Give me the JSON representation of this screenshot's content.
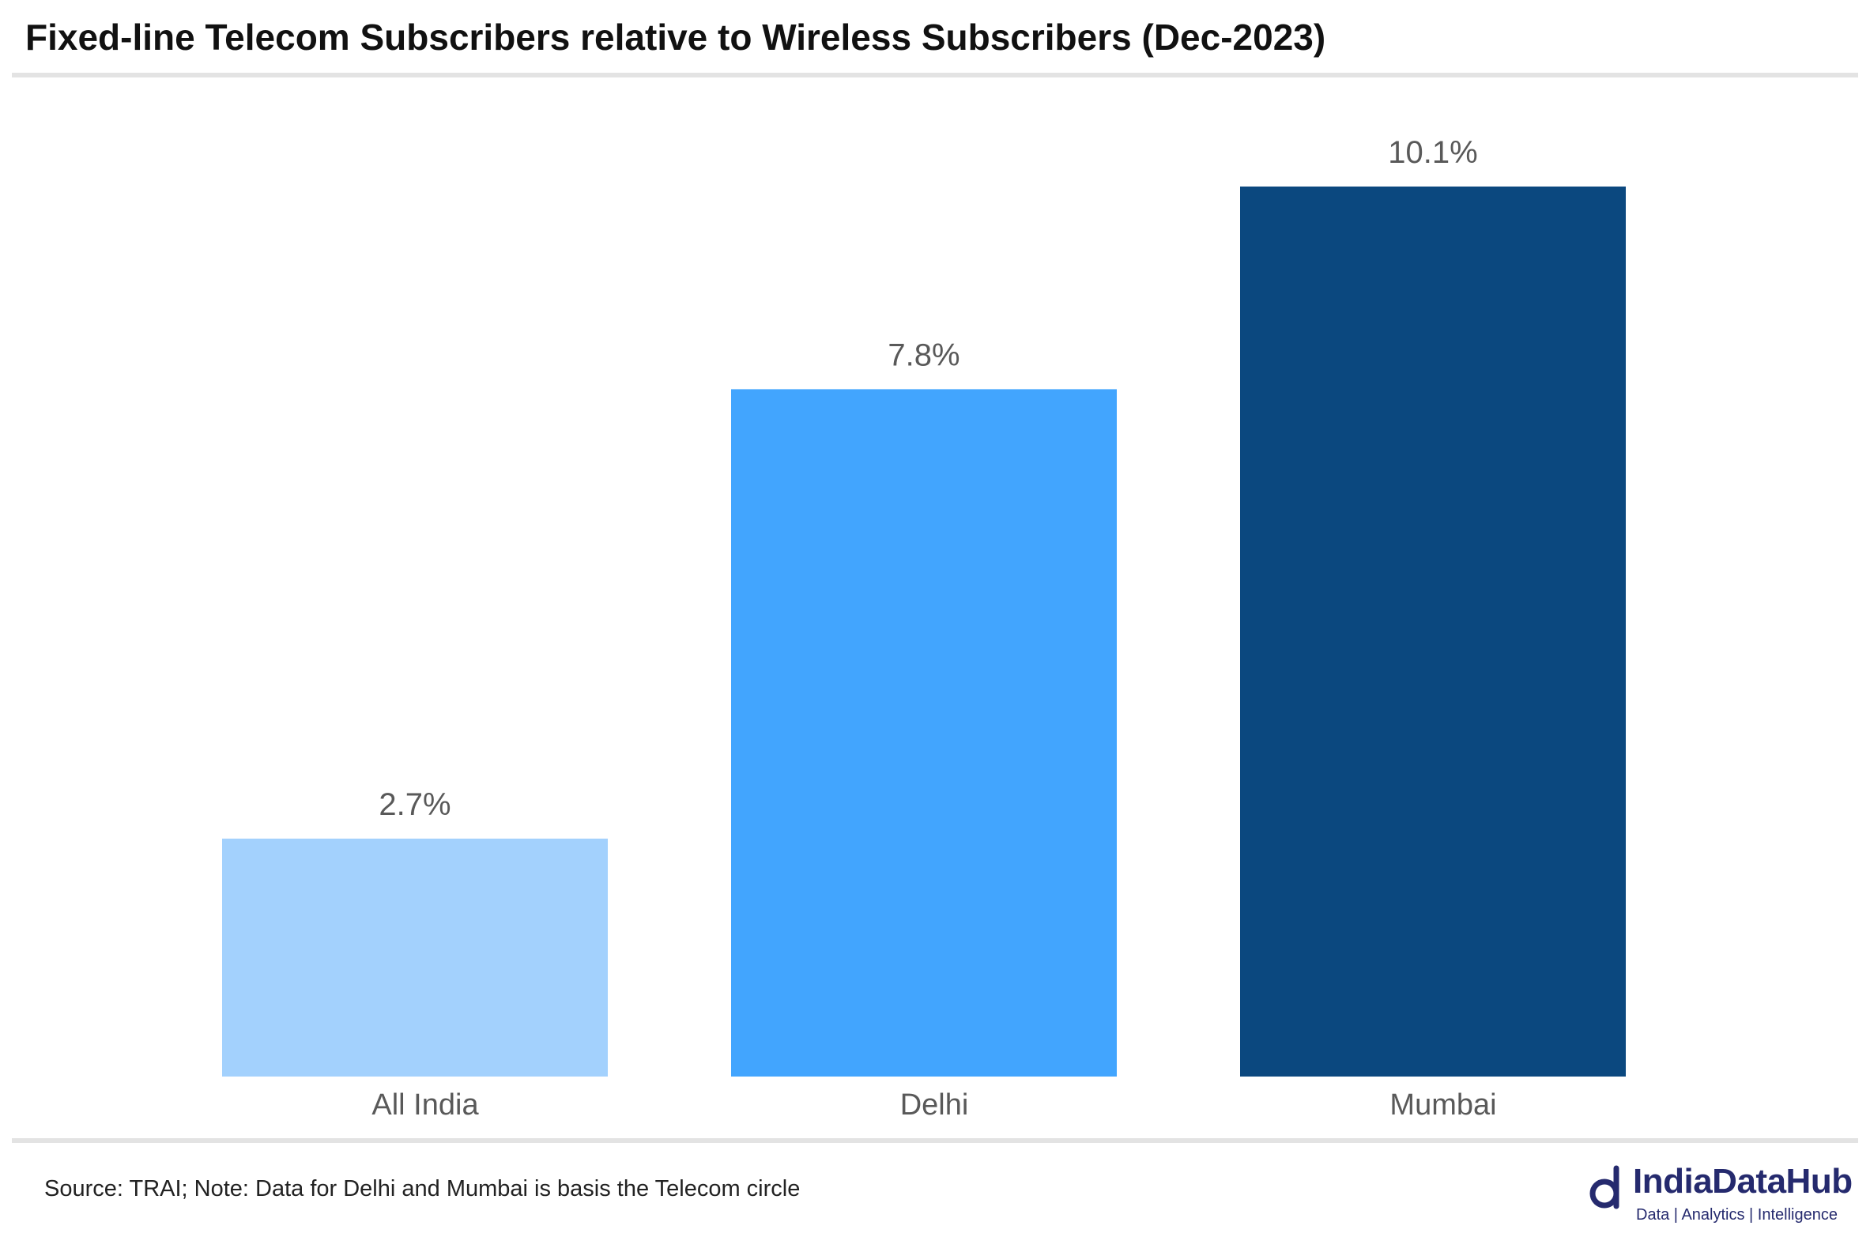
{
  "title": "Fixed-line Telecom Subscribers relative to Wireless Subscribers (Dec-2023)",
  "footer": {
    "source": "Source: TRAI; Note: Data for Delhi and Mumbai is basis the Telecom circle"
  },
  "logo": {
    "name": "IndiaDataHub",
    "tagline": "Data | Analytics | Intelligence",
    "color": "#252a6e"
  },
  "chart_data": {
    "type": "bar",
    "title": "Fixed-line Telecom Subscribers relative to Wireless Subscribers (Dec-2023)",
    "categories": [
      "All India",
      "Delhi",
      "Mumbai"
    ],
    "values": [
      2.7,
      7.8,
      10.1
    ],
    "value_labels": [
      "2.7%",
      "7.8%",
      "10.1%"
    ],
    "colors": [
      "#a3d1fd",
      "#42a5fe",
      "#0b487f"
    ],
    "unit": "%",
    "ylim": [
      0,
      10.1
    ],
    "grid": false,
    "legend": "none"
  }
}
